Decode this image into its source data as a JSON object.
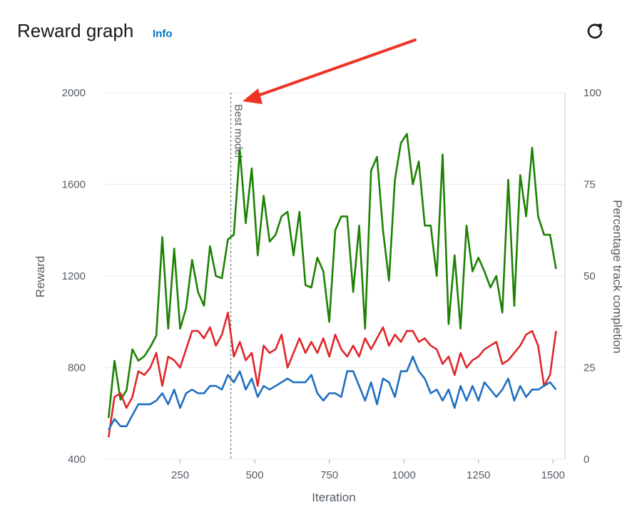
{
  "header": {
    "title": "Reward graph",
    "info_label": "Info",
    "refresh_icon": "refresh-icon"
  },
  "chart_data": {
    "type": "line",
    "xlabel": "Iteration",
    "ylabel": "Reward",
    "y2label": "Percentage track completion",
    "xlim": [
      0,
      1540
    ],
    "ylim": [
      400,
      2000
    ],
    "y2lim": [
      0,
      100
    ],
    "xticks": [
      250,
      500,
      750,
      1000,
      1250,
      1500
    ],
    "yticks": [
      400,
      800,
      1200,
      1600,
      2000
    ],
    "y2ticks": [
      0,
      25,
      50,
      75,
      100
    ],
    "grid": "horizontal",
    "annotation": {
      "label": "Best model",
      "x": 420
    },
    "colors": {
      "green": "#1d8102",
      "red": "#e0262a",
      "blue": "#1f6fbf",
      "arrow": "#ee3324"
    },
    "x": [
      10,
      30,
      50,
      70,
      90,
      110,
      130,
      150,
      170,
      190,
      210,
      230,
      250,
      270,
      290,
      310,
      330,
      350,
      370,
      390,
      410,
      430,
      450,
      470,
      490,
      510,
      530,
      550,
      570,
      590,
      610,
      630,
      650,
      670,
      690,
      710,
      730,
      750,
      770,
      790,
      810,
      830,
      850,
      870,
      890,
      910,
      930,
      950,
      970,
      990,
      1010,
      1030,
      1050,
      1070,
      1090,
      1110,
      1130,
      1150,
      1170,
      1190,
      1210,
      1230,
      1250,
      1270,
      1290,
      1310,
      1330,
      1350,
      1370,
      1390,
      1410,
      1430,
      1450,
      1470,
      1490,
      1510,
      1530
    ],
    "series": [
      {
        "color": "green",
        "axis": "left",
        "values": [
          580,
          830,
          660,
          700,
          880,
          830,
          850,
          890,
          940,
          1370,
          970,
          1320,
          970,
          1060,
          1270,
          1130,
          1070,
          1330,
          1200,
          1190,
          1360,
          1380,
          1750,
          1430,
          1670,
          1290,
          1550,
          1350,
          1380,
          1460,
          1480,
          1290,
          1480,
          1160,
          1150,
          1280,
          1220,
          1000,
          1400,
          1460,
          1460,
          1130,
          1420,
          970,
          1660,
          1720,
          1400,
          1180,
          1620,
          1780,
          1820,
          1600,
          1700,
          1420,
          1420,
          1200,
          1730,
          990,
          1290,
          970,
          1420,
          1220,
          1280,
          1220,
          1150,
          1200,
          1040,
          1620,
          1070,
          1640,
          1460,
          1760,
          1460,
          1380,
          1380,
          1230,
          null
        ]
      },
      {
        "color": "red",
        "axis": "right",
        "values": [
          6,
          17,
          18,
          14,
          17,
          24,
          23,
          25,
          29,
          20,
          28,
          27,
          25,
          30,
          35,
          35,
          33,
          36,
          31,
          34,
          40,
          28,
          32,
          27,
          29,
          20,
          31,
          29,
          30,
          34,
          25,
          29,
          33,
          29,
          32,
          29,
          33,
          28,
          34,
          30,
          28,
          31,
          28,
          33,
          30,
          33,
          36,
          31,
          34,
          32,
          35,
          35,
          32,
          33,
          31,
          30,
          26,
          28,
          23,
          29,
          25,
          27,
          28,
          30,
          31,
          32,
          26,
          27,
          29,
          31,
          34,
          35,
          31,
          20,
          23,
          35,
          null
        ]
      },
      {
        "color": "blue",
        "axis": "right",
        "values": [
          8,
          11,
          9,
          9,
          12,
          15,
          15,
          15,
          16,
          18,
          15,
          19,
          14,
          18,
          19,
          18,
          18,
          20,
          20,
          19,
          23,
          21,
          24,
          19,
          22,
          17,
          20,
          19,
          20,
          21,
          22,
          21,
          21,
          21,
          23,
          18,
          16,
          18,
          18,
          17,
          24,
          24,
          20,
          16,
          21,
          15,
          22,
          21,
          17,
          24,
          24,
          28,
          24,
          22,
          18,
          19,
          16,
          19,
          14,
          20,
          16,
          20,
          16,
          21,
          19,
          17,
          19,
          22,
          16,
          20,
          17,
          19,
          19,
          20,
          21,
          19,
          null
        ]
      }
    ]
  }
}
